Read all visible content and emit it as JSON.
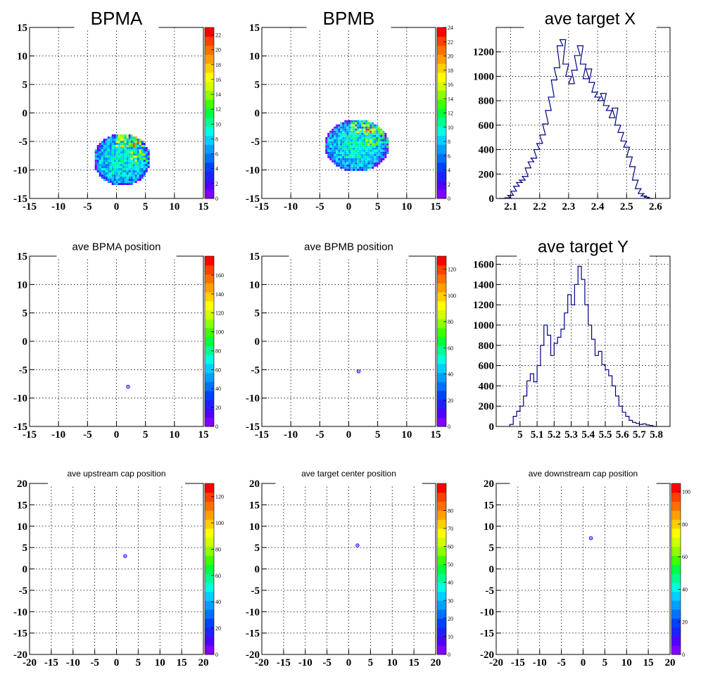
{
  "chart_data": [
    {
      "type": "heatmap",
      "title": "BPMA",
      "xlim": [
        -15,
        15
      ],
      "ylim": [
        -15,
        15
      ],
      "xticks": [
        -15,
        -10,
        -5,
        0,
        5,
        10,
        15
      ],
      "yticks": [
        -15,
        -10,
        -5,
        0,
        5,
        10,
        15
      ],
      "grid": true,
      "blob": {
        "cx": 0.8,
        "cy": -8.0,
        "rx": 4.9,
        "ry": 4.6,
        "seed": 1
      },
      "zmax": 23,
      "zlabels": [
        "0",
        "2",
        "4",
        "6",
        "8",
        "10",
        "12",
        "14",
        "16",
        "18",
        "20",
        "22"
      ]
    },
    {
      "type": "heatmap",
      "title": "BPMB",
      "xlim": [
        -15,
        15
      ],
      "ylim": [
        -15,
        15
      ],
      "xticks": [
        -15,
        -10,
        -5,
        0,
        5,
        10,
        15
      ],
      "yticks": [
        -15,
        -10,
        -5,
        0,
        5,
        10,
        15
      ],
      "grid": true,
      "blob": {
        "cx": 1.2,
        "cy": -5.5,
        "rx": 5.6,
        "ry": 4.6,
        "seed": 2
      },
      "zmax": 24,
      "zlabels": [
        "0",
        "2",
        "4",
        "6",
        "8",
        "10",
        "12",
        "14",
        "16",
        "18",
        "20",
        "22",
        "24"
      ]
    },
    {
      "type": "line",
      "title": "ave target X",
      "xlim": [
        2.05,
        2.65
      ],
      "ylim": [
        0,
        1400
      ],
      "xticks": [
        2.1,
        2.2,
        2.3,
        2.4,
        2.5,
        2.6
      ],
      "xtick_labels": [
        "2.1",
        "2.2",
        "2.3",
        "2.4",
        "2.5",
        "2.6"
      ],
      "yticks": [
        0,
        200,
        400,
        600,
        800,
        1000,
        1200
      ],
      "x": [
        2.07,
        2.09,
        2.1,
        2.11,
        2.12,
        2.13,
        2.14,
        2.15,
        2.16,
        2.17,
        2.18,
        2.19,
        2.2,
        2.21,
        2.22,
        2.23,
        2.24,
        2.25,
        2.26,
        2.27,
        2.28,
        2.29,
        2.3,
        2.31,
        2.32,
        2.33,
        2.34,
        2.35,
        2.36,
        2.37,
        2.38,
        2.39,
        2.4,
        2.41,
        2.42,
        2.43,
        2.44,
        2.45,
        2.46,
        2.47,
        2.48,
        2.49,
        2.5,
        2.51,
        2.52,
        2.53,
        2.54,
        2.55,
        2.56,
        2.57,
        2.58
      ],
      "y": [
        0,
        5,
        25,
        60,
        100,
        130,
        150,
        180,
        250,
        300,
        330,
        400,
        450,
        520,
        610,
        720,
        830,
        970,
        1070,
        1250,
        1300,
        1100,
        1000,
        940,
        1050,
        1170,
        1250,
        1100,
        980,
        1060,
        950,
        870,
        830,
        800,
        860,
        760,
        720,
        660,
        740,
        600,
        540,
        470,
        420,
        340,
        260,
        150,
        80,
        40,
        20,
        10,
        0
      ],
      "grid": true
    },
    {
      "type": "heatmap",
      "title": "ave BPMA position",
      "xlim": [
        -15,
        15
      ],
      "ylim": [
        -15,
        15
      ],
      "xticks": [
        -15,
        -10,
        -5,
        0,
        5,
        10,
        15
      ],
      "yticks": [
        -15,
        -10,
        -5,
        0,
        5,
        10,
        15
      ],
      "grid": true,
      "blob": {
        "cx": 2.0,
        "cy": -8.0,
        "rx": 0.35,
        "ry": 0.3,
        "seed": 3
      },
      "zmax": 180,
      "zlabels": [
        "0",
        "20",
        "40",
        "60",
        "80",
        "100",
        "120",
        "140",
        "160"
      ],
      "zlabels_shown": [
        "0",
        "20",
        "40",
        "60",
        "80",
        "100",
        "120",
        "140",
        "160"
      ]
    },
    {
      "type": "heatmap",
      "title": "ave BPMB position",
      "xlim": [
        -15,
        15
      ],
      "ylim": [
        -15,
        15
      ],
      "xticks": [
        -15,
        -10,
        -5,
        0,
        5,
        10,
        15
      ],
      "yticks": [
        -15,
        -10,
        -5,
        0,
        5,
        10,
        15
      ],
      "grid": true,
      "blob": {
        "cx": 1.7,
        "cy": -5.3,
        "rx": 0.35,
        "ry": 0.3,
        "seed": 4
      },
      "zmax": 130,
      "zlabels": [
        "0",
        "20",
        "40",
        "60",
        "80",
        "100",
        "120"
      ]
    },
    {
      "type": "line",
      "title": "ave target Y",
      "xlim": [
        4.86,
        5.88
      ],
      "ylim": [
        0,
        1680
      ],
      "xticks": [
        5.0,
        5.1,
        5.2,
        5.3,
        5.4,
        5.5,
        5.6,
        5.7,
        5.8
      ],
      "xtick_labels": [
        "5",
        "5.1",
        "5.2",
        "5.3",
        "5.4",
        "5.5",
        "5.6",
        "5.7",
        "5.8"
      ],
      "yticks": [
        0,
        200,
        400,
        600,
        800,
        1000,
        1200,
        1400,
        1600
      ],
      "x": [
        4.95,
        4.97,
        4.99,
        5.01,
        5.03,
        5.05,
        5.07,
        5.09,
        5.11,
        5.13,
        5.15,
        5.17,
        5.19,
        5.21,
        5.23,
        5.25,
        5.27,
        5.29,
        5.31,
        5.33,
        5.35,
        5.37,
        5.39,
        5.41,
        5.43,
        5.45,
        5.47,
        5.49,
        5.51,
        5.53,
        5.55,
        5.57,
        5.59,
        5.61,
        5.63,
        5.65,
        5.67,
        5.69,
        5.71,
        5.73,
        5.75,
        5.77,
        5.79
      ],
      "y": [
        20,
        100,
        150,
        200,
        300,
        450,
        520,
        440,
        600,
        800,
        1000,
        900,
        700,
        820,
        880,
        960,
        1120,
        1300,
        1200,
        1400,
        1580,
        1450,
        1200,
        1000,
        860,
        700,
        740,
        610,
        560,
        500,
        400,
        300,
        200,
        140,
        100,
        60,
        40,
        30,
        20,
        25,
        15,
        10,
        0
      ],
      "grid": true
    },
    {
      "type": "heatmap",
      "title": "ave upstream cap position",
      "xlim": [
        -20,
        20
      ],
      "ylim": [
        -20,
        20
      ],
      "xticks": [
        -20,
        -15,
        -10,
        -5,
        0,
        5,
        10,
        15,
        20
      ],
      "yticks": [
        -20,
        -15,
        -10,
        -5,
        0,
        5,
        10,
        15,
        20
      ],
      "grid": true,
      "blob": {
        "cx": 2.0,
        "cy": 3.0,
        "rx": 0.35,
        "ry": 0.35,
        "seed": 5
      },
      "zmax": 130,
      "zlabels": [
        "0",
        "20",
        "40",
        "60",
        "80",
        "100",
        "120"
      ]
    },
    {
      "type": "heatmap",
      "title": "ave target center  position",
      "xlim": [
        -20,
        20
      ],
      "ylim": [
        -20,
        20
      ],
      "xticks": [
        -20,
        -15,
        -10,
        -5,
        0,
        5,
        10,
        15,
        20
      ],
      "yticks": [
        -20,
        -15,
        -10,
        -5,
        0,
        5,
        10,
        15,
        20
      ],
      "grid": true,
      "blob": {
        "cx": 2.0,
        "cy": 5.5,
        "rx": 0.3,
        "ry": 0.35,
        "seed": 6
      },
      "zmax": 95,
      "zlabels": [
        "0",
        "10",
        "20",
        "30",
        "40",
        "50",
        "60",
        "70",
        "80"
      ]
    },
    {
      "type": "heatmap",
      "title": "ave downstream cap position",
      "xlim": [
        -20,
        20
      ],
      "ylim": [
        -20,
        20
      ],
      "xticks": [
        -20,
        -15,
        -10,
        -5,
        0,
        5,
        10,
        15,
        20
      ],
      "yticks": [
        -20,
        -15,
        -10,
        -5,
        0,
        5,
        10,
        15,
        20
      ],
      "grid": true,
      "blob": {
        "cx": 1.8,
        "cy": 7.2,
        "rx": 0.35,
        "ry": 0.4,
        "seed": 7
      },
      "zmax": 105,
      "zlabels": [
        "0",
        "20",
        "40",
        "60",
        "80",
        "100"
      ]
    }
  ],
  "colors": {
    "palette": [
      "#8000ff",
      "#5000ff",
      "#2020ff",
      "#0040ff",
      "#0070ff",
      "#00a0ff",
      "#00d0ff",
      "#00ffe0",
      "#00ff90",
      "#00ff40",
      "#40ff00",
      "#90ff00",
      "#d0ff00",
      "#ffff00",
      "#ffd000",
      "#ffa000",
      "#ff7000",
      "#ff4000",
      "#ff0000"
    ],
    "hist_line": "#000080",
    "axis": "#000000",
    "grid": "#000000"
  }
}
